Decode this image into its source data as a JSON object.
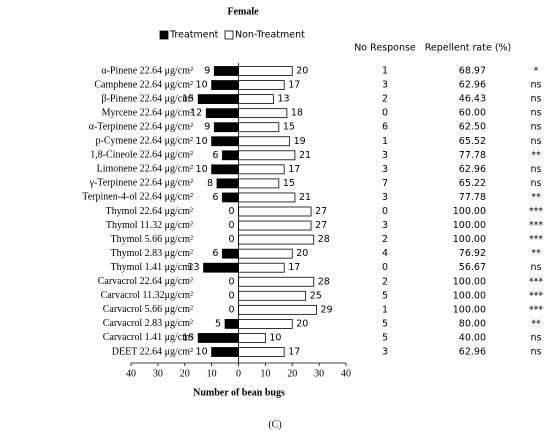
{
  "chart_data": {
    "type": "bar",
    "orientation": "horizontal",
    "title": "Female",
    "categories": [
      "α-Pinene 22.64 μg/cm²",
      "Camphene 22.64 μg/cm²",
      "β-Pinene 22.64 μg/cm²",
      "Myrcene 22.64 μg/cm²",
      "α-Terpinene 22.64 μg/cm²",
      "p-Cymene 22.64 μg/cm²",
      "1,8-Cineole 22.64 μg/cm²",
      "Limonene 22.64 μg/cm²",
      "γ-Terpinene 22.64 μg/cm²",
      "Terpinen-4-ol 22.64 μg/cm²",
      "Thymol 22.64 μg/cm²",
      "Thymol 11.32 μg/cm²",
      "Thymol 5.66 μg/cm²",
      "Thymol 2.83 μg/cm²",
      "Thymol 1.41 μg/cm²",
      "Carvacrol 22.64 μg/cm²",
      "Carvacrol 11.32μg/cm²",
      "Carvacrol 5.66 μg/cm²",
      "Carvacrol 2.83 μg/cm²",
      "Carvacrol 1.41 μg/cm²",
      "DEET 22.64 μg/cm²"
    ],
    "series": [
      {
        "name": "Treatment",
        "color": "#000000",
        "values": [
          -9,
          -10,
          -15,
          -12,
          -9,
          -10,
          -6,
          -10,
          -8,
          -6,
          0,
          0,
          0,
          -6,
          -13,
          0,
          0,
          0,
          -5,
          -15,
          -10
        ],
        "value_labels": [
          "9",
          "10",
          "15",
          "12",
          "9",
          "10",
          "6",
          "10",
          "8",
          "6",
          "0",
          "0",
          "0",
          "6",
          "13",
          "0",
          "0",
          "0",
          "5",
          "15",
          "10"
        ]
      },
      {
        "name": "Non-Treatment",
        "color": "#ffffff",
        "values": [
          20,
          17,
          13,
          18,
          15,
          19,
          21,
          17,
          15,
          21,
          27,
          27,
          28,
          20,
          17,
          28,
          25,
          29,
          20,
          10,
          17
        ]
      }
    ],
    "no_response": {
      "label": "No Response",
      "values": [
        1,
        3,
        2,
        0,
        6,
        1,
        3,
        3,
        7,
        3,
        0,
        3,
        2,
        4,
        0,
        2,
        5,
        1,
        5,
        5,
        3
      ]
    },
    "repellent_rate": {
      "label": "Repellent rate (%)",
      "values": [
        68.97,
        62.96,
        46.43,
        60,
        62.5,
        65.52,
        77.78,
        62.96,
        65.22,
        77.78,
        100,
        100,
        100,
        76.92,
        56.67,
        100,
        100,
        100,
        80,
        40,
        62.96
      ],
      "value_labels": [
        "68.97",
        "62.96",
        "46.43",
        "60.00",
        "62.50",
        "65.52",
        "77.78",
        "62.96",
        "65.22",
        "77.78",
        "100.00",
        "100.00",
        "100.00",
        "76.92",
        "56.67",
        "100.00",
        "100.00",
        "100.00",
        "80.00",
        "40.00",
        "62.96"
      ]
    },
    "significance": [
      "*",
      "ns",
      "ns",
      "ns",
      "ns",
      "ns",
      "**",
      "ns",
      "ns",
      "**",
      "***",
      "***",
      "***",
      "**",
      "ns",
      "***",
      "***",
      "***",
      "**",
      "ns",
      "ns"
    ],
    "xlabel": "Number of bean bugs",
    "xlim": [
      -40,
      40
    ],
    "xticks": [
      {
        "value": -40,
        "label": "40"
      },
      {
        "value": -30,
        "label": "30"
      },
      {
        "value": -20,
        "label": "20"
      },
      {
        "value": -10,
        "label": "10"
      },
      0,
      10,
      20,
      30,
      40
    ],
    "panel_label": "(C)"
  }
}
